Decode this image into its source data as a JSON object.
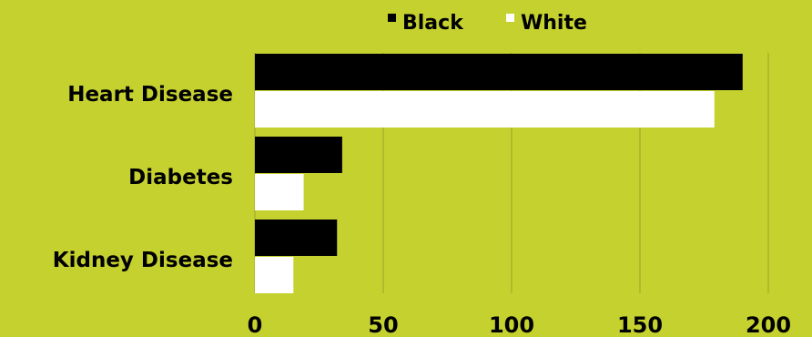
{
  "colors": {
    "background": "#c5d12f",
    "gridline": "#9aa528",
    "Black": "#000000",
    "White": "#ffffff"
  },
  "chart_data": {
    "type": "bar",
    "orientation": "horizontal",
    "categories": [
      "Heart Disease",
      "Diabetes",
      "Kidney Disease"
    ],
    "series": [
      {
        "name": "Black",
        "values": [
          190,
          34,
          32
        ]
      },
      {
        "name": "White",
        "values": [
          179,
          19,
          15
        ]
      }
    ],
    "xlim": [
      0,
      200
    ],
    "x_ticks": [
      "0",
      "50",
      "100",
      "150",
      "200"
    ],
    "grid": true,
    "legend_position": "top-center"
  }
}
